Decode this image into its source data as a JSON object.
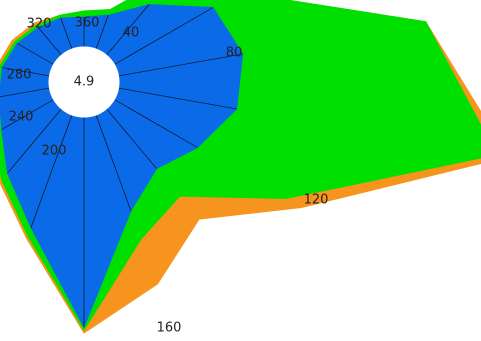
{
  "chart_data": {
    "type": "polar-area-stacked",
    "direction_labels": [
      "40",
      "80",
      "120",
      "160",
      "200",
      "240",
      "280",
      "320",
      "360"
    ],
    "center_label": "4.9",
    "directions_deg": [
      0,
      20,
      40,
      60,
      80,
      100,
      120,
      140,
      160,
      180,
      200,
      220,
      240,
      260,
      280,
      300,
      320,
      340
    ],
    "series": [
      {
        "color": "#f7941d",
        "values": [
          0.6,
          0.7,
          1.8,
          2.4,
          5.2,
          6.6,
          3.6,
          2.4,
          3.0,
          3.6,
          2.2,
          1.6,
          1.2,
          1.0,
          0.9,
          0.8,
          0.7,
          0.6
        ]
      },
      {
        "color": "#00e000",
        "values": [
          0.6,
          0.7,
          1.8,
          2.4,
          5.2,
          6.4,
          3.3,
          1.9,
          2.2,
          3.55,
          2.15,
          1.55,
          1.15,
          0.95,
          0.85,
          0.75,
          0.65,
          0.6
        ]
      },
      {
        "color": "#0a6ae8",
        "values": [
          0.5,
          0.6,
          1.1,
          1.9,
          2.1,
          2.0,
          1.6,
          1.3,
          1.7,
          3.5,
          2.0,
          1.4,
          1.0,
          0.85,
          0.8,
          0.7,
          0.6,
          0.55
        ]
      }
    ]
  }
}
